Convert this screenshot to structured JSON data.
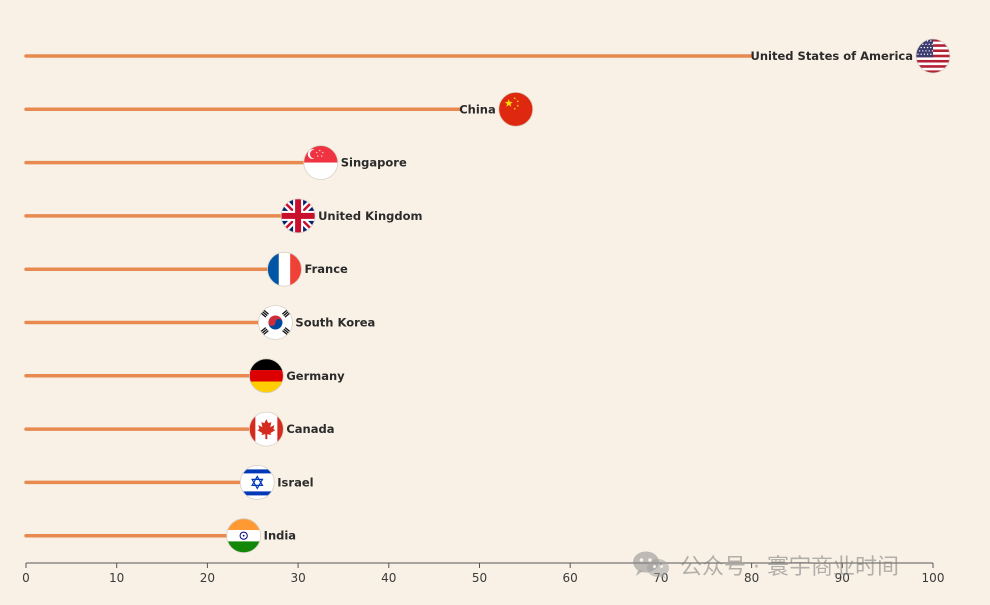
{
  "chart_data": {
    "type": "lollipop",
    "orientation": "horizontal",
    "categories": [
      "United States of America",
      "China",
      "Singapore",
      "United Kingdom",
      "France",
      "South Korea",
      "Germany",
      "Canada",
      "Israel",
      "India"
    ],
    "values": [
      100,
      54,
      32.5,
      30,
      28.5,
      27.5,
      26.5,
      26.5,
      25.5,
      24
    ],
    "xlim": [
      0,
      100
    ],
    "xticks": [
      0,
      10,
      20,
      30,
      40,
      50,
      60,
      70,
      80,
      90,
      100
    ],
    "title": "",
    "xlabel": "",
    "ylabel": "",
    "grid": false,
    "line_color": "#e8894f",
    "axis_color": "#555555",
    "flags": [
      "usa-flag",
      "china-flag",
      "singapore-flag",
      "uk-flag",
      "france-flag",
      "south-korea-flag",
      "germany-flag",
      "canada-flag",
      "israel-flag",
      "india-flag"
    ]
  },
  "watermark": {
    "text": "公众号 · 寰宇商业时间",
    "icon": "wechat-icon"
  }
}
